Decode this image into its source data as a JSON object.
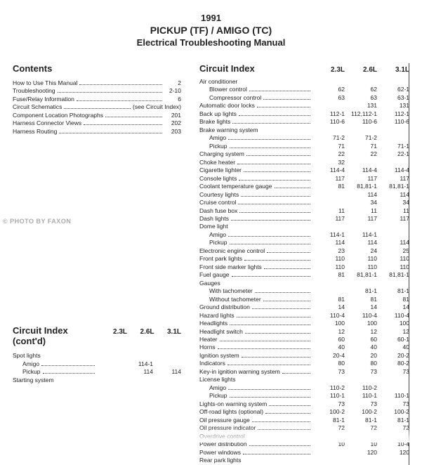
{
  "header": {
    "year": "1991",
    "model": "PICKUP (TF) / AMIGO (TC)",
    "sub": "Electrical Troubleshooting Manual"
  },
  "watermark": "© PHOTO BY FAXON",
  "contents": {
    "title": "Contents",
    "rows": [
      {
        "label": "How to Use This Manual",
        "page": "2"
      },
      {
        "label": "Troubleshooting",
        "page": "2-10"
      },
      {
        "label": "Fuse/Relay Information",
        "page": "6"
      },
      {
        "label": "Circuit Schematics",
        "page": "(see Circuit Index)"
      },
      {
        "label": "Component Location Photographs",
        "page": "201"
      },
      {
        "label": "Harness Connector Views",
        "page": "202"
      },
      {
        "label": "Harness Routing",
        "page": "203"
      }
    ]
  },
  "ci_left": {
    "title": "Circuit Index (cont'd)",
    "cols": [
      "2.3L",
      "2.6L",
      "3.1L"
    ],
    "rows": [
      {
        "label": "Spot lights",
        "v": [
          "",
          "",
          ""
        ]
      },
      {
        "label": "Amigo",
        "indent": true,
        "v": [
          "",
          "114-1",
          ""
        ]
      },
      {
        "label": "Pickup",
        "indent": true,
        "v": [
          "",
          "114",
          "114"
        ]
      },
      {
        "label": "Starting system",
        "v": [
          "",
          "",
          ""
        ]
      }
    ]
  },
  "ci_right": {
    "title": "Circuit Index",
    "cols": [
      "2.3L",
      "2.6L",
      "3.1L"
    ],
    "rows": [
      {
        "label": "Air conditioner",
        "v": [
          "",
          "",
          ""
        ]
      },
      {
        "label": "Blower control",
        "indent": true,
        "v": [
          "62",
          "62",
          "62-1"
        ]
      },
      {
        "label": "Compressor control",
        "indent": true,
        "v": [
          "63",
          "63",
          "63-1"
        ]
      },
      {
        "label": "Automatic door locks",
        "v": [
          "",
          "131",
          "131"
        ]
      },
      {
        "label": "Back up lights",
        "v": [
          "112-1",
          "112,112-1",
          "112-1"
        ]
      },
      {
        "label": "Brake lights",
        "v": [
          "110-6",
          "110-6",
          "110-6"
        ]
      },
      {
        "label": "Brake warning system",
        "v": [
          "",
          "",
          ""
        ]
      },
      {
        "label": "Amigo",
        "indent": true,
        "v": [
          "71-2",
          "71-2",
          ""
        ]
      },
      {
        "label": "Pickup",
        "indent": true,
        "v": [
          "71",
          "71",
          "71-1"
        ]
      },
      {
        "label": "Charging system",
        "v": [
          "22",
          "22",
          "22-1"
        ]
      },
      {
        "label": "Choke heater",
        "v": [
          "32",
          "",
          ""
        ]
      },
      {
        "label": "Cigarette lighter",
        "v": [
          "114-4",
          "114-4",
          "114-4"
        ]
      },
      {
        "label": "Console lights",
        "v": [
          "117",
          "117",
          "117"
        ]
      },
      {
        "label": "Coolant temperature gauge",
        "v": [
          "81",
          "81,81-1",
          "81,81-1"
        ]
      },
      {
        "label": "Courtesy lights",
        "v": [
          "",
          "114",
          "114"
        ]
      },
      {
        "label": "Cruise control",
        "v": [
          "",
          "34",
          "34"
        ]
      },
      {
        "label": "Dash fuse box",
        "v": [
          "11",
          "11",
          "11"
        ]
      },
      {
        "label": "Dash lights",
        "v": [
          "117",
          "117",
          "117"
        ]
      },
      {
        "label": "Dome light",
        "v": [
          "",
          "",
          ""
        ]
      },
      {
        "label": "Amigo",
        "indent": true,
        "v": [
          "114-1",
          "114-1",
          ""
        ]
      },
      {
        "label": "Pickup",
        "indent": true,
        "v": [
          "114",
          "114",
          "114"
        ]
      },
      {
        "label": "Electronic engine control",
        "v": [
          "23",
          "24",
          "25"
        ]
      },
      {
        "label": "Front park lights",
        "v": [
          "110",
          "110",
          "110"
        ]
      },
      {
        "label": "Front side marker lights",
        "v": [
          "110",
          "110",
          "110"
        ]
      },
      {
        "label": "Fuel gauge",
        "v": [
          "81",
          "81,81-1",
          "81,81-1"
        ]
      },
      {
        "label": "Gauges",
        "v": [
          "",
          "",
          ""
        ]
      },
      {
        "label": "With tachometer",
        "indent": true,
        "v": [
          "",
          "81-1",
          "81-1"
        ]
      },
      {
        "label": "Without tachometer",
        "indent": true,
        "v": [
          "81",
          "81",
          "81"
        ]
      },
      {
        "label": "Ground distribution",
        "v": [
          "14",
          "14",
          "14"
        ]
      },
      {
        "label": "Hazard lights",
        "v": [
          "110-4",
          "110-4",
          "110-4"
        ]
      },
      {
        "label": "Headlights",
        "v": [
          "100",
          "100",
          "100"
        ]
      },
      {
        "label": "Headlight switch",
        "v": [
          "12",
          "12",
          "12"
        ]
      },
      {
        "label": "Heater",
        "v": [
          "60",
          "60",
          "60-1"
        ]
      },
      {
        "label": "Horns",
        "v": [
          "40",
          "40",
          "40"
        ]
      },
      {
        "label": "Ignition system",
        "v": [
          "20-4",
          "20",
          "20-2"
        ]
      },
      {
        "label": "Indicators",
        "v": [
          "80",
          "80",
          "80-2"
        ]
      },
      {
        "label": "Key-in ignition warning system",
        "v": [
          "73",
          "73",
          "73"
        ]
      },
      {
        "label": "License lights",
        "v": [
          "",
          "",
          ""
        ]
      },
      {
        "label": "Amigo",
        "indent": true,
        "v": [
          "110-2",
          "110-2",
          ""
        ]
      },
      {
        "label": "Pickup",
        "indent": true,
        "v": [
          "110-1",
          "110-1",
          "110-1"
        ]
      },
      {
        "label": "Lights-on warning system",
        "v": [
          "73",
          "73",
          "73"
        ]
      },
      {
        "label": "Off-road lights (optional)",
        "v": [
          "100-2",
          "100-2",
          "100-2"
        ]
      },
      {
        "label": "Oil pressure gauge",
        "v": [
          "81-1",
          "81-1",
          "81-1"
        ]
      },
      {
        "label": "Oil pressure indicator",
        "v": [
          "72",
          "72",
          "72"
        ]
      },
      {
        "label": "Overdrive control",
        "v": [
          "",
          "",
          ""
        ]
      },
      {
        "label": "Power distribution",
        "v": [
          "10",
          "10",
          "10-4"
        ]
      },
      {
        "label": "Power windows",
        "v": [
          "",
          "120",
          "120"
        ]
      },
      {
        "label": "Rear park lights",
        "v": [
          "",
          "",
          ""
        ]
      }
    ]
  }
}
